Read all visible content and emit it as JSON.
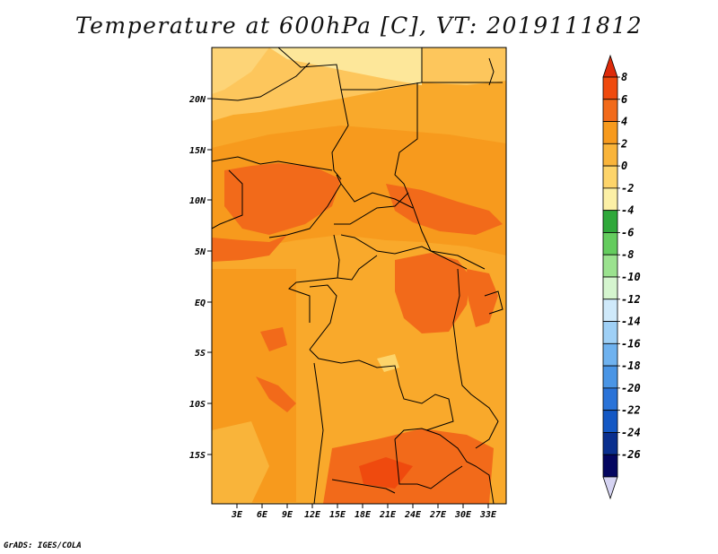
{
  "title": "Temperature at 600hPa [C], VT: 2019111812",
  "credit": "GrADS: IGES/COLA",
  "map": {
    "lat_labels": [
      "20N",
      "15N",
      "10N",
      "5N",
      "EQ",
      "5S",
      "10S",
      "15S"
    ],
    "lon_labels": [
      "3E",
      "6E",
      "9E",
      "12E",
      "15E",
      "18E",
      "21E",
      "24E",
      "27E",
      "30E",
      "33E"
    ]
  },
  "colorbar": {
    "levels": [
      "8",
      "6",
      "4",
      "2",
      "0",
      "-2",
      "-4",
      "-6",
      "-8",
      "-10",
      "-12",
      "-14",
      "-16",
      "-18",
      "-20",
      "-22",
      "-24",
      "-26"
    ],
    "colors": [
      "#dd2a0a",
      "#ef4a0e",
      "#f26a1a",
      "#f79a1d",
      "#f9b43a",
      "#fdd46a",
      "#fcf0a6",
      "#2fa83a",
      "#64cc5e",
      "#9be28f",
      "#d5f5cf",
      "#cfe9fa",
      "#9fd0f6",
      "#6fb2ef",
      "#4a95e5",
      "#2a73d8",
      "#1458c4",
      "#0a2f8e",
      "#040660",
      "#d5d3f2"
    ]
  }
}
